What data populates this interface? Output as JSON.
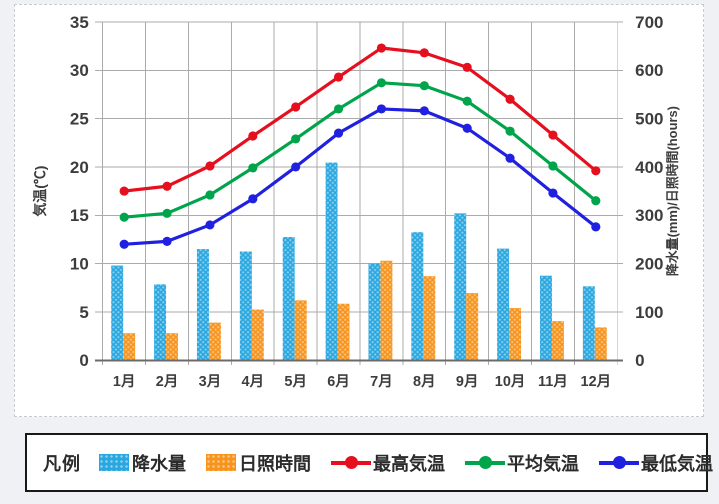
{
  "page": {
    "background": "#eff1f4"
  },
  "legend": {
    "title": "凡例"
  },
  "chart_data": {
    "type": "bar+line",
    "categories": [
      "1月",
      "2月",
      "3月",
      "4月",
      "5月",
      "6月",
      "7月",
      "8月",
      "9月",
      "10月",
      "11月",
      "12月"
    ],
    "series": [
      {
        "name": "降水量",
        "type": "bar",
        "axis": "right",
        "color": "#29a7e0",
        "values": [
          196,
          157,
          230,
          225,
          255,
          409,
          200,
          265,
          304,
          231,
          175,
          153
        ]
      },
      {
        "name": "日照時間",
        "type": "bar",
        "axis": "right",
        "color": "#f7941d",
        "values": [
          56,
          56,
          78,
          105,
          124,
          117,
          206,
          174,
          139,
          108,
          81,
          68
        ]
      },
      {
        "name": "最高気温",
        "type": "line",
        "axis": "left",
        "color": "#e60f1e",
        "values": [
          17.5,
          18.0,
          20.1,
          23.2,
          26.2,
          29.3,
          32.3,
          31.8,
          30.3,
          27.0,
          23.3,
          19.6
        ]
      },
      {
        "name": "平均気温",
        "type": "line",
        "axis": "left",
        "color": "#00a44a",
        "values": [
          14.8,
          15.2,
          17.1,
          19.9,
          22.9,
          26.0,
          28.7,
          28.4,
          26.8,
          23.7,
          20.1,
          16.5
        ]
      },
      {
        "name": "最低気温",
        "type": "line",
        "axis": "left",
        "color": "#2020e0",
        "values": [
          12.0,
          12.3,
          14.0,
          16.7,
          20.0,
          23.5,
          26.0,
          25.8,
          24.0,
          20.9,
          17.3,
          13.8
        ]
      }
    ],
    "left_axis": {
      "label": "気温(℃)",
      "range": [
        0,
        35
      ],
      "tick_step": 5,
      "ticks": [
        0,
        5,
        10,
        15,
        20,
        25,
        30,
        35
      ]
    },
    "right_axis": {
      "label": "降水量(mm)/日照時間(hours)",
      "range": [
        0,
        700
      ],
      "tick_step": 100,
      "ticks": [
        0,
        100,
        200,
        300,
        400,
        500,
        600,
        700
      ]
    },
    "grid": true,
    "legend_position": "bottom",
    "colors": {
      "gridline": "#ababab",
      "axis_line": "#6b6b6b",
      "tick_text": "#3d3d3d"
    }
  }
}
